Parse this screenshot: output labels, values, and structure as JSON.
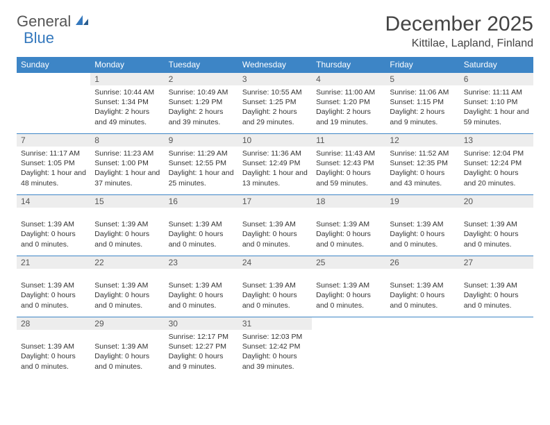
{
  "brand": {
    "part1": "General",
    "part2": "Blue"
  },
  "title": "December 2025",
  "location": "Kittilae, Lapland, Finland",
  "colors": {
    "header_bg": "#3d85c6",
    "header_text": "#ffffff",
    "daynum_bg": "#ededed",
    "border": "#3d85c6",
    "brand_blue": "#3478bd"
  },
  "day_headers": [
    "Sunday",
    "Monday",
    "Tuesday",
    "Wednesday",
    "Thursday",
    "Friday",
    "Saturday"
  ],
  "weeks": [
    [
      {
        "n": "",
        "lines": []
      },
      {
        "n": "1",
        "lines": [
          "Sunrise: 10:44 AM",
          "Sunset: 1:34 PM",
          "Daylight: 2 hours and 49 minutes."
        ]
      },
      {
        "n": "2",
        "lines": [
          "Sunrise: 10:49 AM",
          "Sunset: 1:29 PM",
          "Daylight: 2 hours and 39 minutes."
        ]
      },
      {
        "n": "3",
        "lines": [
          "Sunrise: 10:55 AM",
          "Sunset: 1:25 PM",
          "Daylight: 2 hours and 29 minutes."
        ]
      },
      {
        "n": "4",
        "lines": [
          "Sunrise: 11:00 AM",
          "Sunset: 1:20 PM",
          "Daylight: 2 hours and 19 minutes."
        ]
      },
      {
        "n": "5",
        "lines": [
          "Sunrise: 11:06 AM",
          "Sunset: 1:15 PM",
          "Daylight: 2 hours and 9 minutes."
        ]
      },
      {
        "n": "6",
        "lines": [
          "Sunrise: 11:11 AM",
          "Sunset: 1:10 PM",
          "Daylight: 1 hour and 59 minutes."
        ]
      }
    ],
    [
      {
        "n": "7",
        "lines": [
          "Sunrise: 11:17 AM",
          "Sunset: 1:05 PM",
          "Daylight: 1 hour and 48 minutes."
        ]
      },
      {
        "n": "8",
        "lines": [
          "Sunrise: 11:23 AM",
          "Sunset: 1:00 PM",
          "Daylight: 1 hour and 37 minutes."
        ]
      },
      {
        "n": "9",
        "lines": [
          "Sunrise: 11:29 AM",
          "Sunset: 12:55 PM",
          "Daylight: 1 hour and 25 minutes."
        ]
      },
      {
        "n": "10",
        "lines": [
          "Sunrise: 11:36 AM",
          "Sunset: 12:49 PM",
          "Daylight: 1 hour and 13 minutes."
        ]
      },
      {
        "n": "11",
        "lines": [
          "Sunrise: 11:43 AM",
          "Sunset: 12:43 PM",
          "Daylight: 0 hours and 59 minutes."
        ]
      },
      {
        "n": "12",
        "lines": [
          "Sunrise: 11:52 AM",
          "Sunset: 12:35 PM",
          "Daylight: 0 hours and 43 minutes."
        ]
      },
      {
        "n": "13",
        "lines": [
          "Sunrise: 12:04 PM",
          "Sunset: 12:24 PM",
          "Daylight: 0 hours and 20 minutes."
        ]
      }
    ],
    [
      {
        "n": "14",
        "lines": [
          "",
          "Sunset: 1:39 AM",
          "Daylight: 0 hours and 0 minutes."
        ]
      },
      {
        "n": "15",
        "lines": [
          "",
          "Sunset: 1:39 AM",
          "Daylight: 0 hours and 0 minutes."
        ]
      },
      {
        "n": "16",
        "lines": [
          "",
          "Sunset: 1:39 AM",
          "Daylight: 0 hours and 0 minutes."
        ]
      },
      {
        "n": "17",
        "lines": [
          "",
          "Sunset: 1:39 AM",
          "Daylight: 0 hours and 0 minutes."
        ]
      },
      {
        "n": "18",
        "lines": [
          "",
          "Sunset: 1:39 AM",
          "Daylight: 0 hours and 0 minutes."
        ]
      },
      {
        "n": "19",
        "lines": [
          "",
          "Sunset: 1:39 AM",
          "Daylight: 0 hours and 0 minutes."
        ]
      },
      {
        "n": "20",
        "lines": [
          "",
          "Sunset: 1:39 AM",
          "Daylight: 0 hours and 0 minutes."
        ]
      }
    ],
    [
      {
        "n": "21",
        "lines": [
          "",
          "Sunset: 1:39 AM",
          "Daylight: 0 hours and 0 minutes."
        ]
      },
      {
        "n": "22",
        "lines": [
          "",
          "Sunset: 1:39 AM",
          "Daylight: 0 hours and 0 minutes."
        ]
      },
      {
        "n": "23",
        "lines": [
          "",
          "Sunset: 1:39 AM",
          "Daylight: 0 hours and 0 minutes."
        ]
      },
      {
        "n": "24",
        "lines": [
          "",
          "Sunset: 1:39 AM",
          "Daylight: 0 hours and 0 minutes."
        ]
      },
      {
        "n": "25",
        "lines": [
          "",
          "Sunset: 1:39 AM",
          "Daylight: 0 hours and 0 minutes."
        ]
      },
      {
        "n": "26",
        "lines": [
          "",
          "Sunset: 1:39 AM",
          "Daylight: 0 hours and 0 minutes."
        ]
      },
      {
        "n": "27",
        "lines": [
          "",
          "Sunset: 1:39 AM",
          "Daylight: 0 hours and 0 minutes."
        ]
      }
    ],
    [
      {
        "n": "28",
        "lines": [
          "",
          "Sunset: 1:39 AM",
          "Daylight: 0 hours and 0 minutes."
        ]
      },
      {
        "n": "29",
        "lines": [
          "",
          "Sunset: 1:39 AM",
          "Daylight: 0 hours and 0 minutes."
        ]
      },
      {
        "n": "30",
        "lines": [
          "Sunrise: 12:17 PM",
          "Sunset: 12:27 PM",
          "Daylight: 0 hours and 9 minutes."
        ]
      },
      {
        "n": "31",
        "lines": [
          "Sunrise: 12:03 PM",
          "Sunset: 12:42 PM",
          "Daylight: 0 hours and 39 minutes."
        ]
      },
      {
        "n": "",
        "lines": []
      },
      {
        "n": "",
        "lines": []
      },
      {
        "n": "",
        "lines": []
      }
    ]
  ]
}
